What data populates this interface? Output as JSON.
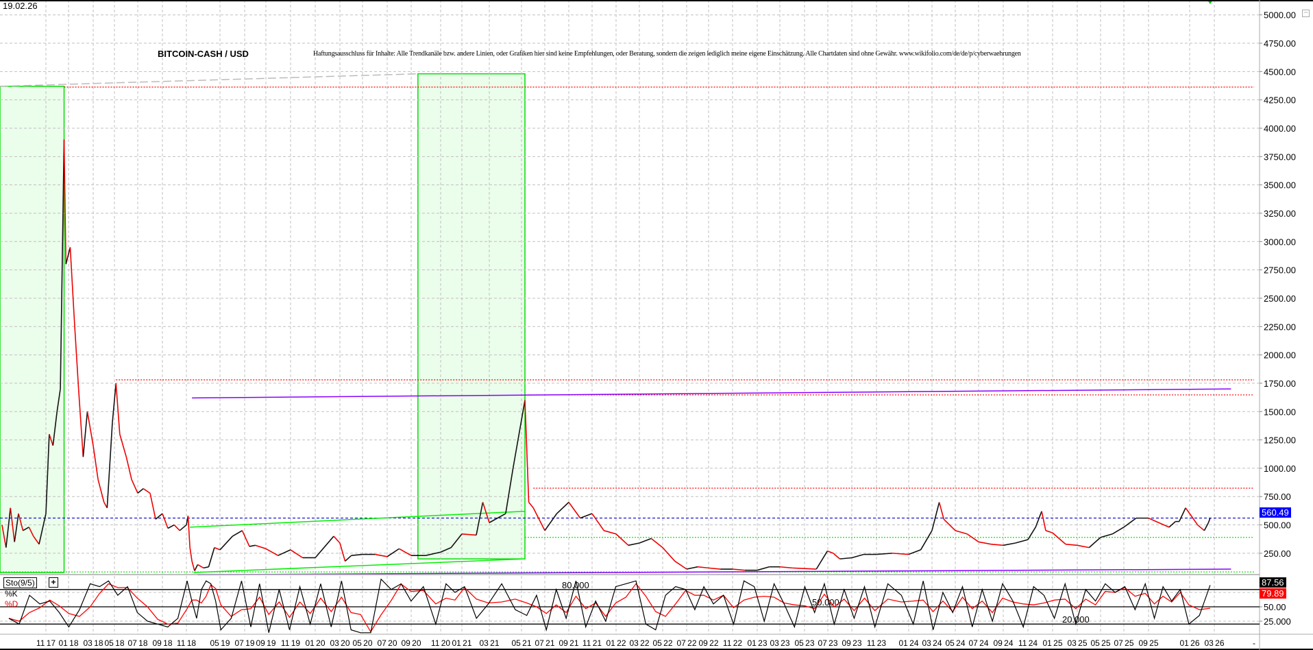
{
  "header": {
    "date": "19.02.26",
    "title": "BITCOIN-CASH / USD",
    "disclaimer": "Haftungsausschluss für Inhalte: Alle Trendkanäle bzw. andere Linien, oder Grafiken hier sind keine Empfehlungen, oder Beratung, sondern die zeigen lediglich meine eigene Einschätzung. Alle Chartdaten sind ohne Gewähr.  www.wikifolio.com/de/de/p/cyberwaehrungen"
  },
  "chart_data": [
    {
      "type": "line",
      "name": "BITCOIN-CASH / USD",
      "ylim": [
        0,
        5000
      ],
      "grid": true,
      "yticks": [
        "5000.00",
        "4750.00",
        "4500.00",
        "4250.00",
        "4000.00",
        "3750.00",
        "3500.00",
        "3250.00",
        "3000.00",
        "2750.00",
        "2500.00",
        "2250.00",
        "2000.00",
        "1750.00",
        "1500.00",
        "1250.00",
        "1000.00",
        "750.00",
        "500.00",
        "250.00"
      ],
      "xticks": [
        "11 17",
        "01 18",
        "03 18",
        "05 18",
        "07 18",
        "09 18",
        "11 18",
        "05 19",
        "07 19",
        "09 19",
        "11 19",
        "01 20",
        "03 20",
        "05 20",
        "07 20",
        "09 20",
        "11 20",
        "01 21",
        "03 21",
        "05 21",
        "07 21",
        "09 21",
        "11 21",
        "01 22",
        "03 22",
        "05 22",
        "07 22",
        "09 22",
        "11 22",
        "01 23",
        "03 23",
        "05 23",
        "07 23",
        "09 23",
        "11 23",
        "01 24",
        "03 24",
        "05 24",
        "07 24",
        "09 24",
        "11 24",
        "01 25",
        "03 25",
        "05 25",
        "07 25",
        "09 25",
        "01 26",
        "03 26"
      ],
      "last_price": "560.49",
      "last_price_color": "#0000ff",
      "close": [
        [
          "2017-07-15",
          500
        ],
        [
          "2017-07-25",
          300
        ],
        [
          "2017-08-05",
          650
        ],
        [
          "2017-08-15",
          350
        ],
        [
          "2017-08-25",
          600
        ],
        [
          "2017-09-05",
          450
        ],
        [
          "2017-09-20",
          480
        ],
        [
          "2017-10-01",
          400
        ],
        [
          "2017-10-15",
          330
        ],
        [
          "2017-11-01",
          600
        ],
        [
          "2017-11-10",
          1300
        ],
        [
          "2017-11-20",
          1200
        ],
        [
          "2017-12-01",
          1500
        ],
        [
          "2017-12-10",
          1700
        ],
        [
          "2017-12-20",
          3900
        ],
        [
          "2017-12-25",
          2800
        ],
        [
          "2018-01-05",
          2950
        ],
        [
          "2018-01-15",
          2300
        ],
        [
          "2018-01-25",
          1700
        ],
        [
          "2018-02-05",
          1100
        ],
        [
          "2018-02-15",
          1500
        ],
        [
          "2018-03-01",
          1200
        ],
        [
          "2018-03-15",
          900
        ],
        [
          "2018-04-01",
          700
        ],
        [
          "2018-04-10",
          650
        ],
        [
          "2018-04-25",
          1400
        ],
        [
          "2018-05-05",
          1750
        ],
        [
          "2018-05-15",
          1300
        ],
        [
          "2018-06-01",
          1100
        ],
        [
          "2018-06-15",
          900
        ],
        [
          "2018-07-01",
          780
        ],
        [
          "2018-07-15",
          820
        ],
        [
          "2018-08-01",
          780
        ],
        [
          "2018-08-15",
          550
        ],
        [
          "2018-09-01",
          600
        ],
        [
          "2018-09-15",
          470
        ],
        [
          "2018-10-01",
          500
        ],
        [
          "2018-10-15",
          450
        ],
        [
          "2018-11-01",
          500
        ],
        [
          "2018-11-10",
          580
        ],
        [
          "2018-11-20",
          300
        ],
        [
          "2018-12-01",
          180
        ],
        [
          "2018-12-15",
          95
        ],
        [
          "2019-01-01",
          150
        ],
        [
          "2019-02-01",
          120
        ],
        [
          "2019-03-01",
          130
        ],
        [
          "2019-04-01",
          300
        ],
        [
          "2019-05-01",
          280
        ],
        [
          "2019-06-01",
          400
        ],
        [
          "2019-06-25",
          450
        ],
        [
          "2019-07-15",
          310
        ],
        [
          "2019-08-01",
          320
        ],
        [
          "2019-09-01",
          290
        ],
        [
          "2019-10-01",
          230
        ],
        [
          "2019-11-01",
          280
        ],
        [
          "2019-12-01",
          210
        ],
        [
          "2020-01-01",
          210
        ],
        [
          "2020-02-15",
          400
        ],
        [
          "2020-03-01",
          340
        ],
        [
          "2020-03-15",
          180
        ],
        [
          "2020-04-01",
          230
        ],
        [
          "2020-05-01",
          240
        ],
        [
          "2020-06-01",
          240
        ],
        [
          "2020-07-01",
          220
        ],
        [
          "2020-08-01",
          290
        ],
        [
          "2020-09-01",
          230
        ],
        [
          "2020-10-01",
          230
        ],
        [
          "2020-11-01",
          260
        ],
        [
          "2020-12-01",
          300
        ],
        [
          "2021-01-01",
          420
        ],
        [
          "2021-02-01",
          410
        ],
        [
          "2021-02-15",
          700
        ],
        [
          "2021-03-01",
          520
        ],
        [
          "2021-04-01",
          600
        ],
        [
          "2021-04-15",
          1000
        ],
        [
          "2021-05-10",
          1600
        ],
        [
          "2021-05-20",
          700
        ],
        [
          "2021-06-01",
          650
        ],
        [
          "2021-07-01",
          450
        ],
        [
          "2021-08-01",
          600
        ],
        [
          "2021-09-01",
          700
        ],
        [
          "2021-10-01",
          560
        ],
        [
          "2021-11-01",
          600
        ],
        [
          "2021-12-01",
          450
        ],
        [
          "2022-01-01",
          420
        ],
        [
          "2022-02-01",
          320
        ],
        [
          "2022-03-01",
          340
        ],
        [
          "2022-04-01",
          380
        ],
        [
          "2022-05-01",
          300
        ],
        [
          "2022-06-01",
          180
        ],
        [
          "2022-07-01",
          110
        ],
        [
          "2022-08-01",
          130
        ],
        [
          "2022-09-01",
          120
        ],
        [
          "2022-10-01",
          110
        ],
        [
          "2022-11-01",
          110
        ],
        [
          "2022-12-01",
          100
        ],
        [
          "2023-01-01",
          100
        ],
        [
          "2023-02-01",
          130
        ],
        [
          "2023-03-01",
          130
        ],
        [
          "2023-04-01",
          120
        ],
        [
          "2023-05-01",
          115
        ],
        [
          "2023-06-01",
          110
        ],
        [
          "2023-06-30",
          270
        ],
        [
          "2023-07-15",
          250
        ],
        [
          "2023-08-01",
          200
        ],
        [
          "2023-09-01",
          210
        ],
        [
          "2023-10-01",
          240
        ],
        [
          "2023-11-01",
          240
        ],
        [
          "2023-12-01",
          250
        ],
        [
          "2024-01-01",
          240
        ],
        [
          "2024-02-01",
          280
        ],
        [
          "2024-03-01",
          450
        ],
        [
          "2024-03-20",
          700
        ],
        [
          "2024-04-01",
          550
        ],
        [
          "2024-05-01",
          450
        ],
        [
          "2024-06-01",
          420
        ],
        [
          "2024-07-01",
          350
        ],
        [
          "2024-08-01",
          330
        ],
        [
          "2024-09-01",
          320
        ],
        [
          "2024-10-01",
          340
        ],
        [
          "2024-11-01",
          370
        ],
        [
          "2024-11-20",
          480
        ],
        [
          "2024-12-05",
          620
        ],
        [
          "2024-12-15",
          450
        ],
        [
          "2025-01-01",
          430
        ],
        [
          "2025-02-01",
          330
        ],
        [
          "2025-03-01",
          320
        ],
        [
          "2025-04-01",
          300
        ],
        [
          "2025-05-01",
          390
        ],
        [
          "2025-06-01",
          420
        ],
        [
          "2025-07-01",
          480
        ],
        [
          "2025-08-01",
          560
        ],
        [
          "2025-09-01",
          560
        ],
        [
          "2025-10-01",
          520
        ],
        [
          "2025-11-01",
          480
        ],
        [
          "2025-11-20",
          530
        ],
        [
          "2025-12-01",
          530
        ],
        [
          "2025-12-20",
          650
        ],
        [
          "2026-01-01",
          600
        ],
        [
          "2026-01-20",
          500
        ],
        [
          "2026-02-05",
          450
        ],
        [
          "2026-02-15",
          520
        ],
        [
          "2026-02-19",
          560.49
        ]
      ],
      "overlays": {
        "horizontal": [
          {
            "value": 4363,
            "from": "2017-12-20",
            "color": "#ff0000",
            "style": "dotted"
          },
          {
            "value": 1780,
            "from": "2018-05-05",
            "color": "#ff0000",
            "style": "dotted"
          },
          {
            "value": 1647,
            "from": "2021-05-10",
            "color": "#ff0000",
            "style": "dotted"
          },
          {
            "value": 824,
            "from": "2021-06-01",
            "color": "#ff0000",
            "style": "dotted"
          },
          {
            "value": 560.49,
            "from": "2017-07-10",
            "color": "#0000cc",
            "style": "dashed"
          },
          {
            "value": 390,
            "from": "2021-05-10",
            "color": "#00ee00",
            "style": "dotted"
          },
          {
            "value": 85,
            "from": "2017-07-10",
            "color": "#00ee00",
            "style": "dotted"
          }
        ],
        "trendlines": [
          {
            "from": [
              "2018-12-01",
              1620
            ],
            "to": [
              "2026-04-10",
              1700
            ],
            "color": "#8800ff"
          },
          {
            "from": [
              "2019-01-01",
              60
            ],
            "to": [
              "2026-04-10",
              110
            ],
            "color": "#8800ff"
          },
          {
            "from": [
              "2018-11-20",
              480
            ],
            "to": [
              "2021-05-10",
              620
            ],
            "color": "#00ee00"
          },
          {
            "from": [
              "2018-12-10",
              80
            ],
            "to": [
              "2021-05-10",
              200
            ],
            "color": "#00ee00"
          },
          {
            "from": [
              "2017-07-10",
              4370
            ],
            "to": [
              "2020-09-15",
              4480
            ],
            "color": "#bbbbbb"
          }
        ],
        "zones": [
          {
            "from": "2017-07-10",
            "to": "2017-12-20",
            "low": 80,
            "high": 4370,
            "color": "#00dd00"
          },
          {
            "from": "2020-09-15",
            "to": "2021-05-10",
            "low": 200,
            "high": 4480,
            "color": "#00dd00"
          }
        ]
      }
    },
    {
      "type": "line",
      "name": "Sto(9/5)",
      "ylim": [
        0,
        100
      ],
      "labels": {
        "k": "%K",
        "d": "%D",
        "plus": "+"
      },
      "levels": [
        "80.000",
        "50.000",
        "20.000"
      ],
      "yticks": [
        "50.00",
        "25.000"
      ],
      "k_last": "87.56",
      "d_last": "79.89",
      "k_color": "#000000",
      "d_color": "#ff0000",
      "start": "2017-08-01",
      "end": "2026-02-19",
      "k": [
        30,
        20,
        70,
        55,
        60,
        40,
        15,
        45,
        90,
        85,
        95,
        70,
        85,
        40,
        25,
        20,
        15,
        30,
        95,
        60,
        30,
        80,
        95,
        90,
        60,
        10,
        30,
        95,
        15,
        90,
        5,
        80,
        10,
        85,
        20,
        90,
        15,
        95,
        10,
        5,
        5,
        98,
        80,
        90,
        60,
        85,
        20,
        90,
        75,
        85,
        30,
        55,
        90,
        45,
        35,
        70,
        10,
        80,
        30,
        95,
        15,
        60,
        25,
        85,
        90,
        95,
        20,
        10,
        70,
        85,
        80,
        45,
        85,
        55,
        70,
        20,
        95,
        85,
        25,
        90,
        55,
        15,
        85,
        40,
        90,
        20,
        80,
        30,
        85,
        15,
        90,
        70,
        20,
        95,
        10,
        75,
        40,
        85,
        15,
        80,
        25,
        90,
        60,
        15,
        85,
        70,
        30,
        90,
        20,
        80,
        60,
        90,
        75,
        85,
        45,
        90,
        30,
        85,
        60,
        80,
        20,
        35,
        87.56
      ]
    }
  ],
  "axis_end_label": "-"
}
